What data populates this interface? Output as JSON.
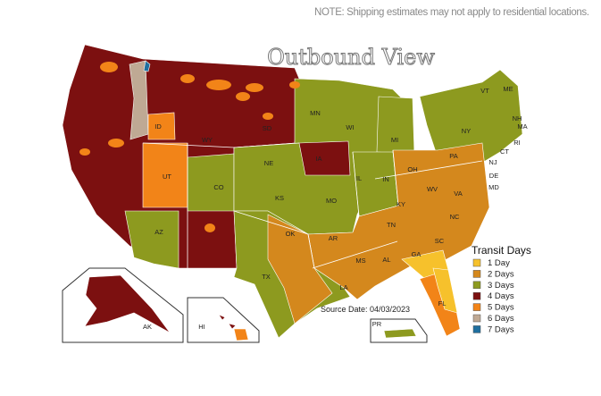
{
  "note": "NOTE: Shipping estimates may not apply to residential locations.",
  "title": "Outbound View",
  "source": "Source Date: 04/03/2023",
  "legend": {
    "title": "Transit Days",
    "items": [
      {
        "label": "1 Day",
        "color": "#f6c12c"
      },
      {
        "label": "2 Days",
        "color": "#d4881d"
      },
      {
        "label": "3 Days",
        "color": "#8d9a1f"
      },
      {
        "label": "4 Days",
        "color": "#7c1010"
      },
      {
        "label": "5 Days",
        "color": "#f28418"
      },
      {
        "label": "6 Days",
        "color": "#bfa994"
      },
      {
        "label": "7 Days",
        "color": "#1f6f9f"
      }
    ]
  },
  "state_labels": [
    "ID",
    "UT",
    "WY",
    "CO",
    "AZ",
    "SD",
    "NE",
    "KS",
    "OK",
    "TX",
    "MN",
    "WI",
    "IA",
    "MI",
    "IL",
    "IN",
    "MO",
    "AR",
    "LA",
    "MS",
    "AL",
    "TN",
    "KY",
    "GA",
    "FL",
    "SC",
    "NC",
    "VA",
    "WV",
    "OH",
    "PA",
    "NY",
    "VT",
    "ME",
    "NH",
    "MA",
    "RI",
    "CT",
    "NJ",
    "DE",
    "MD"
  ],
  "insets": {
    "alaska": "AK",
    "hawaii": "HI",
    "puerto_rico": "PR"
  }
}
